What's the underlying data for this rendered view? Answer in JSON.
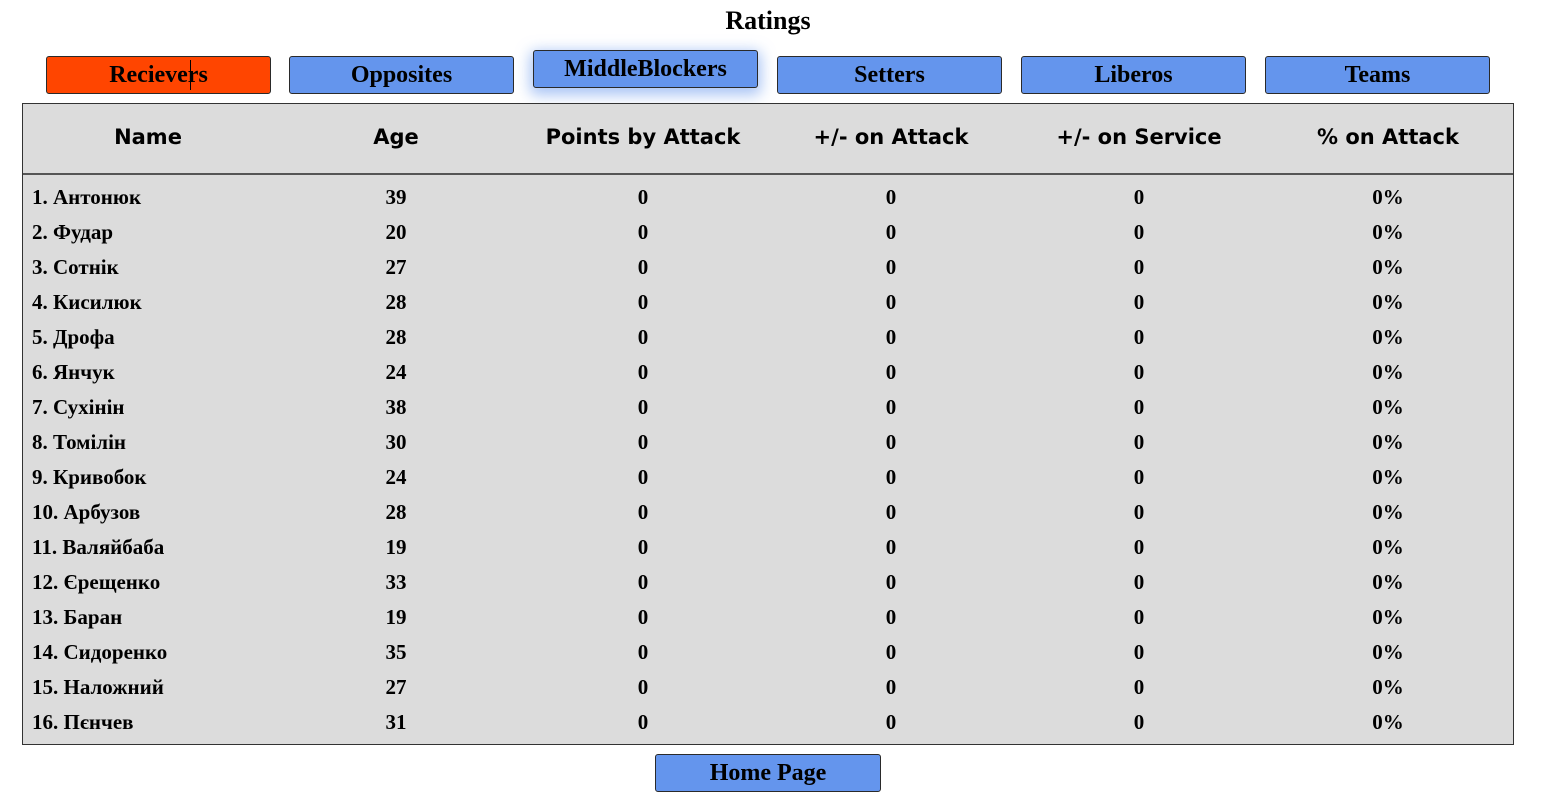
{
  "page": {
    "title": "Ratings"
  },
  "tabs": [
    {
      "label": "Recievers",
      "active": true
    },
    {
      "label": "Opposites",
      "active": false
    },
    {
      "label": "MiddleBlockers",
      "active": false,
      "hovered": true
    },
    {
      "label": "Setters",
      "active": false
    },
    {
      "label": "Liberos",
      "active": false
    },
    {
      "label": "Teams",
      "active": false
    }
  ],
  "table": {
    "headers": [
      "Name",
      "Age",
      "Points by Attack",
      "+/- on Attack",
      "+/- on Service",
      "% on Attack"
    ],
    "rows": [
      [
        "1. Антонюк",
        "39",
        "0",
        "0",
        "0",
        "0%"
      ],
      [
        "2. Фудар",
        "20",
        "0",
        "0",
        "0",
        "0%"
      ],
      [
        "3. Сотнік",
        "27",
        "0",
        "0",
        "0",
        "0%"
      ],
      [
        "4. Кисилюк",
        "28",
        "0",
        "0",
        "0",
        "0%"
      ],
      [
        "5. Дрофа",
        "28",
        "0",
        "0",
        "0",
        "0%"
      ],
      [
        "6. Янчук",
        "24",
        "0",
        "0",
        "0",
        "0%"
      ],
      [
        "7. Сухінін",
        "38",
        "0",
        "0",
        "0",
        "0%"
      ],
      [
        "8. Томілін",
        "30",
        "0",
        "0",
        "0",
        "0%"
      ],
      [
        "9. Кривобок",
        "24",
        "0",
        "0",
        "0",
        "0%"
      ],
      [
        "10. Арбузов",
        "28",
        "0",
        "0",
        "0",
        "0%"
      ],
      [
        "11. Валяйбаба",
        "19",
        "0",
        "0",
        "0",
        "0%"
      ],
      [
        "12. Єрещенко",
        "33",
        "0",
        "0",
        "0",
        "0%"
      ],
      [
        "13. Баран",
        "19",
        "0",
        "0",
        "0",
        "0%"
      ],
      [
        "14. Сидоренко",
        "35",
        "0",
        "0",
        "0",
        "0%"
      ],
      [
        "15. Наложний",
        "27",
        "0",
        "0",
        "0",
        "0%"
      ],
      [
        "16. Пєнчев",
        "31",
        "0",
        "0",
        "0",
        "0%"
      ]
    ]
  },
  "footer": {
    "home_label": "Home Page"
  },
  "colors": {
    "tab_default": "#6495ed",
    "tab_active": "#ff4500",
    "table_bg": "#dcdcdc"
  }
}
